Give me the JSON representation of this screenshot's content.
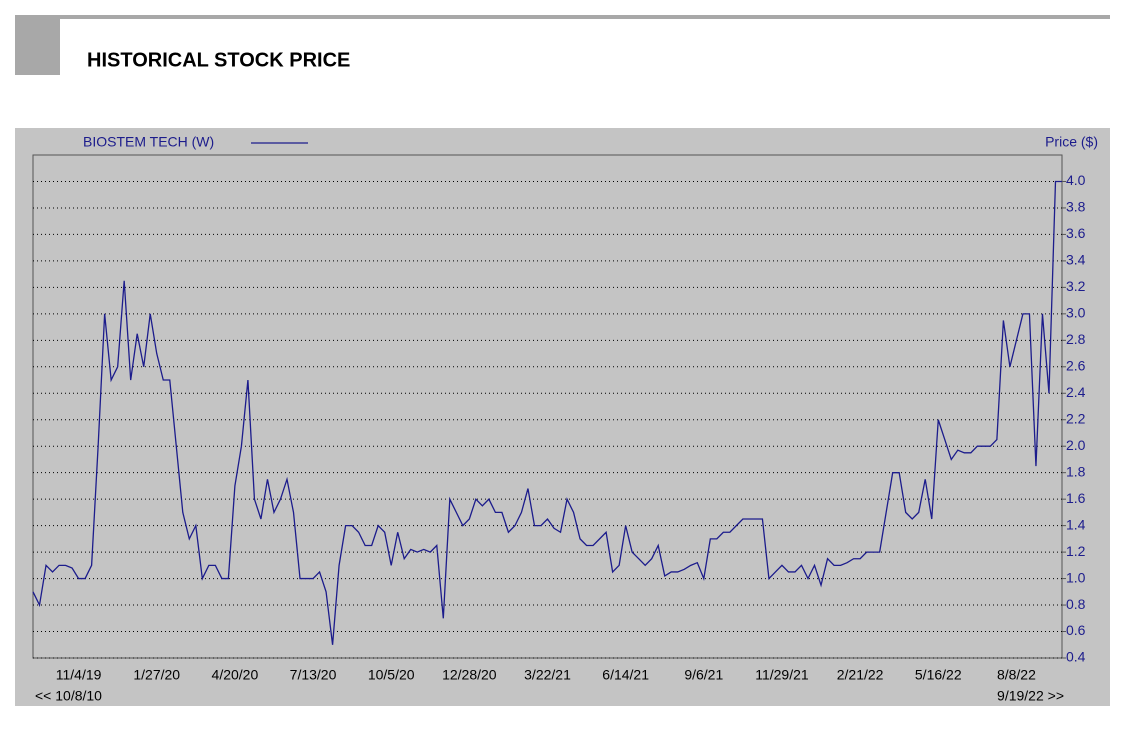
{
  "header": {
    "title": "HISTORICAL STOCK PRICE"
  },
  "chart_data": {
    "type": "line",
    "y_axis_label": "Price ($)",
    "range_labels": [
      "<< 10/8/10",
      "9/19/22 >>"
    ],
    "categories": [
      null,
      null,
      null,
      null,
      null,
      null,
      null,
      "11/4/19",
      null,
      null,
      null,
      null,
      null,
      null,
      null,
      null,
      null,
      null,
      null,
      "1/27/20",
      null,
      null,
      null,
      null,
      null,
      null,
      null,
      null,
      null,
      null,
      null,
      "4/20/20",
      null,
      null,
      null,
      null,
      null,
      null,
      null,
      null,
      null,
      null,
      null,
      "7/13/20",
      null,
      null,
      null,
      null,
      null,
      null,
      null,
      null,
      null,
      null,
      null,
      "10/5/20",
      null,
      null,
      null,
      null,
      null,
      null,
      null,
      null,
      null,
      null,
      null,
      "12/28/20",
      null,
      null,
      null,
      null,
      null,
      null,
      null,
      null,
      null,
      null,
      null,
      "3/22/21",
      null,
      null,
      null,
      null,
      null,
      null,
      null,
      null,
      null,
      null,
      null,
      "6/14/21",
      null,
      null,
      null,
      null,
      null,
      null,
      null,
      null,
      null,
      null,
      null,
      "9/6/21",
      null,
      null,
      null,
      null,
      null,
      null,
      null,
      null,
      null,
      null,
      null,
      "11/29/21",
      null,
      null,
      null,
      null,
      null,
      null,
      null,
      null,
      null,
      null,
      null,
      "2/21/22",
      null,
      null,
      null,
      null,
      null,
      null,
      null,
      null,
      null,
      null,
      null,
      "5/16/22",
      null,
      null,
      null,
      null,
      null,
      null,
      null,
      null,
      null,
      null,
      null,
      "8/8/22",
      null,
      null,
      null,
      null,
      null,
      null,
      null
    ],
    "series": [
      {
        "name": "BIOSTEM TECH (W)",
        "color": "#1c1c8c",
        "values": [
          0.9,
          0.8,
          1.1,
          1.05,
          1.1,
          1.1,
          1.08,
          1.0,
          1.0,
          1.1,
          2.0,
          3.0,
          2.5,
          2.6,
          3.25,
          2.5,
          2.85,
          2.6,
          3.0,
          2.7,
          2.5,
          2.5,
          2.0,
          1.5,
          1.3,
          1.4,
          1.0,
          1.1,
          1.1,
          1.0,
          1.0,
          1.7,
          2.0,
          2.5,
          1.6,
          1.45,
          1.75,
          1.5,
          1.6,
          1.75,
          1.5,
          1.0,
          1.0,
          1.0,
          1.05,
          0.9,
          0.5,
          1.1,
          1.4,
          1.4,
          1.35,
          1.25,
          1.25,
          1.4,
          1.35,
          1.1,
          1.35,
          1.15,
          1.22,
          1.2,
          1.22,
          1.2,
          1.25,
          0.7,
          1.6,
          1.5,
          1.4,
          1.45,
          1.6,
          1.55,
          1.6,
          1.5,
          1.5,
          1.35,
          1.4,
          1.5,
          1.68,
          1.4,
          1.4,
          1.45,
          1.38,
          1.35,
          1.6,
          1.5,
          1.3,
          1.25,
          1.25,
          1.3,
          1.35,
          1.05,
          1.1,
          1.4,
          1.2,
          1.15,
          1.1,
          1.15,
          1.25,
          1.02,
          1.05,
          1.05,
          1.07,
          1.1,
          1.12,
          1.0,
          1.3,
          1.3,
          1.35,
          1.35,
          1.4,
          1.45,
          1.45,
          1.45,
          1.45,
          1.0,
          1.05,
          1.1,
          1.05,
          1.05,
          1.1,
          1.0,
          1.1,
          0.95,
          1.15,
          1.1,
          1.1,
          1.12,
          1.15,
          1.15,
          1.2,
          1.2,
          1.2,
          1.5,
          1.8,
          1.8,
          1.5,
          1.45,
          1.5,
          1.75,
          1.45,
          2.2,
          2.05,
          1.9,
          1.97,
          1.95,
          1.95,
          2.0,
          2.0,
          2.0,
          2.05,
          2.95,
          2.6,
          2.8,
          3.0,
          3.0,
          1.85,
          3.0,
          2.4,
          4.0,
          4.0
        ]
      }
    ],
    "ylim": [
      0.4,
      4.2
    ],
    "yticks": [
      0.4,
      0.6,
      0.8,
      {
        "value": 1,
        "label": "1.0"
      },
      1.2,
      1.4,
      1.6,
      1.8,
      {
        "value": 2,
        "label": "2.0"
      },
      2.2,
      2.4,
      2.6,
      2.8,
      {
        "value": 3,
        "label": "3.0"
      },
      3.2,
      3.4,
      3.6,
      3.8,
      {
        "value": 4,
        "label": "4.0"
      }
    ],
    "grid": true
  }
}
